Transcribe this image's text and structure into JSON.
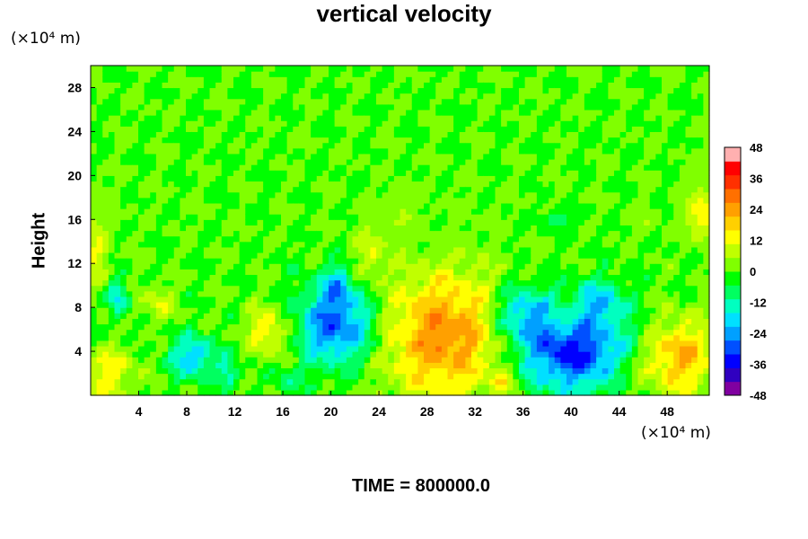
{
  "chart_data": {
    "type": "heatmap",
    "title": "vertical velocity",
    "ylabel": "Height",
    "y_unit": "(×10⁴ m)",
    "x_unit": "(×10⁴ m)",
    "footer": "TIME = 800000.0",
    "xlim": [
      0,
      51.5
    ],
    "ylim": [
      0,
      30
    ],
    "x_ticks": [
      4,
      8,
      12,
      16,
      20,
      24,
      28,
      32,
      36,
      40,
      44,
      48
    ],
    "y_ticks": [
      4,
      8,
      12,
      16,
      20,
      24,
      28
    ],
    "colorbar": {
      "min": -48,
      "max": 48,
      "ticks": [
        48,
        36,
        24,
        12,
        0,
        -12,
        -24,
        -36,
        -48
      ],
      "colors": [
        "#8000a0",
        "#3000c0",
        "#0000ff",
        "#0050ff",
        "#00a0ff",
        "#00e0ff",
        "#00ffc0",
        "#00ff60",
        "#00ff00",
        "#80ff00",
        "#c0ff00",
        "#ffff00",
        "#ffd000",
        "#ffa000",
        "#ff7000",
        "#ff3000",
        "#ff0000",
        "#ffb0b0"
      ]
    },
    "features": [
      {
        "x": 29.5,
        "y": 5.5,
        "w": 26,
        "sx": 3.6,
        "sy": 4.0
      },
      {
        "x": 49.0,
        "y": 3.5,
        "w": 22,
        "sx": 2.0,
        "sy": 2.4
      },
      {
        "x": 14.8,
        "y": 5.8,
        "w": 16,
        "sx": 1.1,
        "sy": 1.5
      },
      {
        "x": 1.5,
        "y": 2.0,
        "w": 14,
        "sx": 1.5,
        "sy": 1.6
      },
      {
        "x": 39.5,
        "y": 7.0,
        "w": 8,
        "sx": 1.2,
        "sy": 1.0
      },
      {
        "x": 23.3,
        "y": 13.0,
        "w": 9,
        "sx": 1.0,
        "sy": 2.0
      },
      {
        "x": 5.5,
        "y": 8.5,
        "w": 10,
        "sx": 1.0,
        "sy": 1.0
      },
      {
        "x": 50.8,
        "y": 16.5,
        "w": 14,
        "sx": 0.9,
        "sy": 1.8
      },
      {
        "x": 34.5,
        "y": 1.2,
        "w": 10,
        "sx": 0.8,
        "sy": 0.8
      },
      {
        "x": 0.5,
        "y": 13.0,
        "w": 10,
        "sx": 0.8,
        "sy": 2.5
      },
      {
        "x": 20.5,
        "y": 6.5,
        "w": -30,
        "sx": 2.2,
        "sy": 2.6
      },
      {
        "x": 40.0,
        "y": 4.0,
        "w": -34,
        "sx": 3.2,
        "sy": 2.6
      },
      {
        "x": 36.0,
        "y": 7.5,
        "w": -20,
        "sx": 1.8,
        "sy": 1.8
      },
      {
        "x": 8.5,
        "y": 3.5,
        "w": -22,
        "sx": 1.3,
        "sy": 1.3
      },
      {
        "x": 42.5,
        "y": 8.5,
        "w": -16,
        "sx": 1.5,
        "sy": 1.5
      },
      {
        "x": 20.5,
        "y": 10.0,
        "w": -14,
        "sx": 0.8,
        "sy": 1.2
      },
      {
        "x": 2.3,
        "y": 9.0,
        "w": -18,
        "sx": 0.6,
        "sy": 1.2
      },
      {
        "x": 11.5,
        "y": 2.0,
        "w": -14,
        "sx": 0.6,
        "sy": 1.0
      },
      {
        "x": 16.5,
        "y": 1.5,
        "w": -8,
        "sx": 0.8,
        "sy": 0.8
      },
      {
        "x": 39.0,
        "y": 16.0,
        "w": -10,
        "sx": 0.8,
        "sy": 0.6
      },
      {
        "x": 45.0,
        "y": 2.0,
        "w": 6,
        "sx": 1.0,
        "sy": 1.2
      },
      {
        "x": 26.0,
        "y": 16.5,
        "w": 6,
        "sx": 0.6,
        "sy": 1.2
      },
      {
        "x": 46.0,
        "y": 16.0,
        "w": 5,
        "sx": 0.6,
        "sy": 1.0
      }
    ]
  }
}
